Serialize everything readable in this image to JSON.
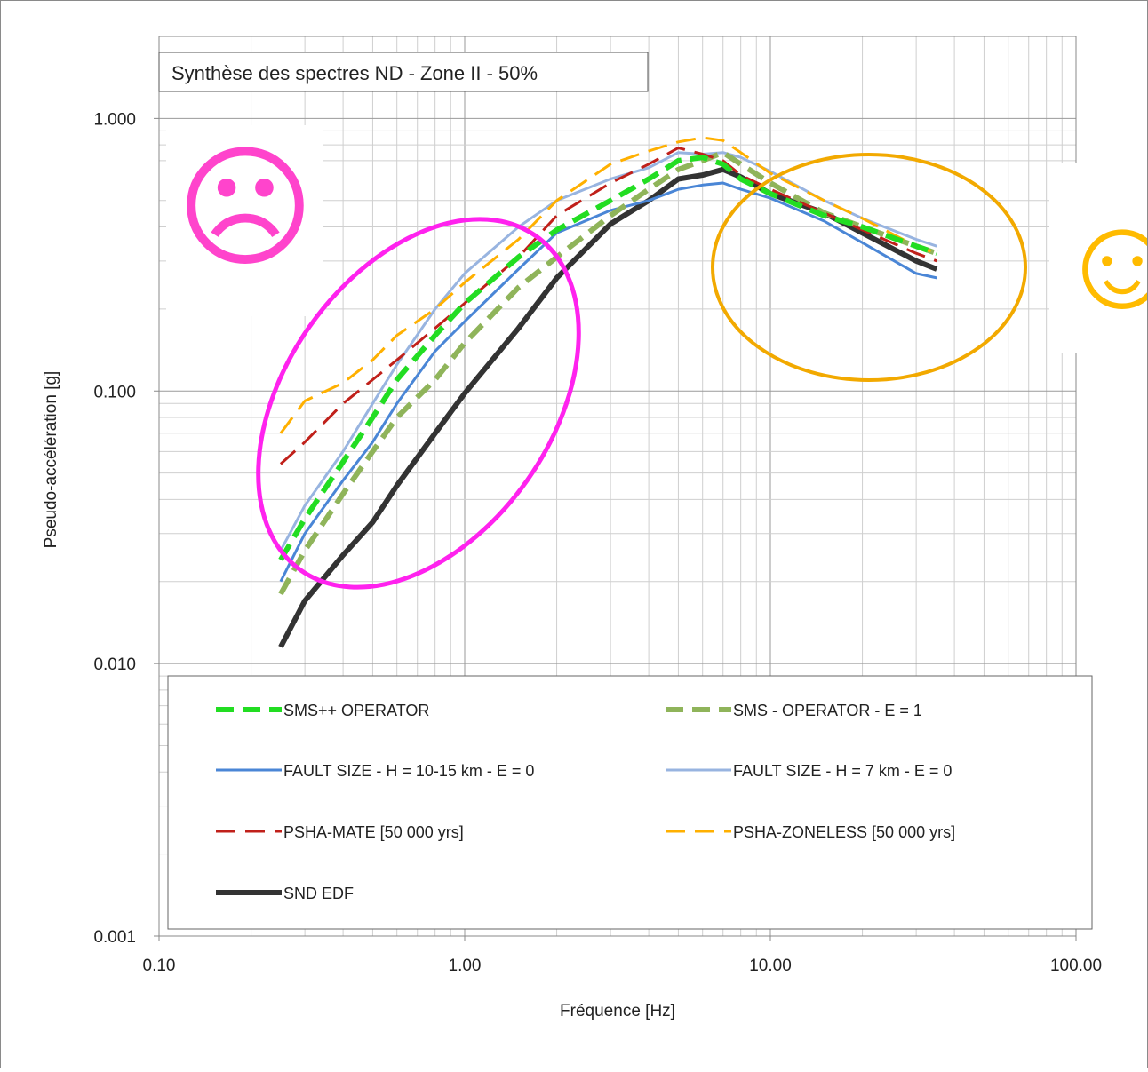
{
  "chart_data": {
    "type": "line",
    "title": "Synthèse des spectres ND - Zone II - 50%",
    "xlabel": "Fréquence [Hz]",
    "ylabel": "Pseudo-accélération [g]",
    "xscale": "log",
    "yscale": "log",
    "xlim": [
      0.1,
      100
    ],
    "ylim": [
      0.001,
      2
    ],
    "x_ticks": [
      "0.10",
      "1.00",
      "10.00",
      "100.00"
    ],
    "y_ticks": [
      "0.001",
      "0.010",
      "0.100",
      "1.000"
    ],
    "grid": true,
    "legend_position": "bottom-inside",
    "series": [
      {
        "name": "SMS++ OPERATOR",
        "color": "#22dd22",
        "style": "bold-dash",
        "points": [
          [
            0.25,
            0.024
          ],
          [
            0.3,
            0.034
          ],
          [
            0.4,
            0.055
          ],
          [
            0.5,
            0.08
          ],
          [
            0.6,
            0.11
          ],
          [
            0.8,
            0.16
          ],
          [
            1.0,
            0.21
          ],
          [
            1.5,
            0.31
          ],
          [
            2.0,
            0.39
          ],
          [
            3.0,
            0.5
          ],
          [
            4.0,
            0.6
          ],
          [
            5.0,
            0.7
          ],
          [
            6.0,
            0.72
          ],
          [
            7.0,
            0.68
          ],
          [
            8.0,
            0.6
          ],
          [
            10.0,
            0.53
          ],
          [
            15.0,
            0.44
          ],
          [
            20.0,
            0.4
          ],
          [
            30.0,
            0.34
          ],
          [
            35.0,
            0.32
          ]
        ]
      },
      {
        "name": "SMS - OPERATOR - E = 1",
        "color": "#8fb45a",
        "style": "bold-dash",
        "points": [
          [
            0.25,
            0.018
          ],
          [
            0.3,
            0.026
          ],
          [
            0.4,
            0.042
          ],
          [
            0.5,
            0.06
          ],
          [
            0.6,
            0.08
          ],
          [
            0.8,
            0.11
          ],
          [
            1.0,
            0.15
          ],
          [
            1.5,
            0.24
          ],
          [
            2.0,
            0.31
          ],
          [
            3.0,
            0.44
          ],
          [
            4.0,
            0.55
          ],
          [
            5.0,
            0.65
          ],
          [
            6.0,
            0.7
          ],
          [
            7.0,
            0.75
          ],
          [
            8.0,
            0.68
          ],
          [
            10.0,
            0.58
          ],
          [
            15.0,
            0.45
          ],
          [
            20.0,
            0.4
          ],
          [
            30.0,
            0.34
          ],
          [
            35.0,
            0.32
          ]
        ]
      },
      {
        "name": "FAULT SIZE - H = 10-15 km - E = 0",
        "color": "#4a86d6",
        "style": "solid",
        "points": [
          [
            0.25,
            0.02
          ],
          [
            0.3,
            0.03
          ],
          [
            0.4,
            0.047
          ],
          [
            0.5,
            0.065
          ],
          [
            0.6,
            0.09
          ],
          [
            0.8,
            0.14
          ],
          [
            1.0,
            0.18
          ],
          [
            1.5,
            0.28
          ],
          [
            2.0,
            0.38
          ],
          [
            3.0,
            0.46
          ],
          [
            4.0,
            0.5
          ],
          [
            5.0,
            0.55
          ],
          [
            6.0,
            0.57
          ],
          [
            7.0,
            0.58
          ],
          [
            8.0,
            0.55
          ],
          [
            10.0,
            0.51
          ],
          [
            15.0,
            0.42
          ],
          [
            20.0,
            0.35
          ],
          [
            30.0,
            0.27
          ],
          [
            35.0,
            0.26
          ]
        ]
      },
      {
        "name": "FAULT SIZE - H = 7 km - E = 0",
        "color": "#98b4e0",
        "style": "solid",
        "points": [
          [
            0.25,
            0.026
          ],
          [
            0.3,
            0.038
          ],
          [
            0.4,
            0.06
          ],
          [
            0.5,
            0.09
          ],
          [
            0.6,
            0.125
          ],
          [
            0.8,
            0.2
          ],
          [
            1.0,
            0.27
          ],
          [
            1.5,
            0.4
          ],
          [
            2.0,
            0.5
          ],
          [
            3.0,
            0.6
          ],
          [
            4.0,
            0.66
          ],
          [
            5.0,
            0.75
          ],
          [
            6.0,
            0.74
          ],
          [
            7.0,
            0.75
          ],
          [
            8.0,
            0.72
          ],
          [
            10.0,
            0.64
          ],
          [
            15.0,
            0.5
          ],
          [
            20.0,
            0.43
          ],
          [
            30.0,
            0.36
          ],
          [
            35.0,
            0.34
          ]
        ]
      },
      {
        "name": "PSHA-MATE [50 000 yrs]",
        "color": "#c0201a",
        "style": "dash",
        "points": [
          [
            0.25,
            0.054
          ],
          [
            0.3,
            0.065
          ],
          [
            0.4,
            0.09
          ],
          [
            0.5,
            0.11
          ],
          [
            0.6,
            0.13
          ],
          [
            0.8,
            0.17
          ],
          [
            1.0,
            0.21
          ],
          [
            1.5,
            0.31
          ],
          [
            2.0,
            0.44
          ],
          [
            3.0,
            0.58
          ],
          [
            4.0,
            0.68
          ],
          [
            5.0,
            0.78
          ],
          [
            6.0,
            0.74
          ],
          [
            7.0,
            0.7
          ],
          [
            8.0,
            0.62
          ],
          [
            10.0,
            0.55
          ],
          [
            15.0,
            0.45
          ],
          [
            20.0,
            0.39
          ],
          [
            30.0,
            0.32
          ],
          [
            35.0,
            0.3
          ]
        ]
      },
      {
        "name": "PSHA-ZONELESS [50 000 yrs]",
        "color": "#ffb000",
        "style": "dash",
        "points": [
          [
            0.25,
            0.07
          ],
          [
            0.3,
            0.092
          ],
          [
            0.4,
            0.107
          ],
          [
            0.5,
            0.13
          ],
          [
            0.6,
            0.16
          ],
          [
            0.8,
            0.2
          ],
          [
            1.0,
            0.25
          ],
          [
            1.5,
            0.36
          ],
          [
            2.0,
            0.5
          ],
          [
            3.0,
            0.68
          ],
          [
            4.0,
            0.76
          ],
          [
            5.0,
            0.82
          ],
          [
            6.0,
            0.85
          ],
          [
            7.0,
            0.83
          ],
          [
            8.0,
            0.75
          ],
          [
            10.0,
            0.63
          ],
          [
            15.0,
            0.5
          ],
          [
            20.0,
            0.43
          ],
          [
            30.0,
            0.34
          ],
          [
            35.0,
            0.32
          ]
        ]
      },
      {
        "name": "SND EDF",
        "color": "#333333",
        "style": "bold",
        "points": [
          [
            0.25,
            0.0115
          ],
          [
            0.3,
            0.017
          ],
          [
            0.4,
            0.025
          ],
          [
            0.5,
            0.033
          ],
          [
            0.6,
            0.045
          ],
          [
            0.8,
            0.07
          ],
          [
            1.0,
            0.098
          ],
          [
            1.5,
            0.17
          ],
          [
            2.0,
            0.26
          ],
          [
            3.0,
            0.41
          ],
          [
            4.0,
            0.5
          ],
          [
            5.0,
            0.6
          ],
          [
            6.0,
            0.62
          ],
          [
            7.0,
            0.65
          ],
          [
            8.0,
            0.61
          ],
          [
            10.0,
            0.53
          ],
          [
            15.0,
            0.45
          ],
          [
            20.0,
            0.38
          ],
          [
            30.0,
            0.3
          ],
          [
            35.0,
            0.28
          ]
        ]
      }
    ],
    "annotations": {
      "sad_face": {
        "glyph": "☹",
        "color": "#ff44cc"
      },
      "happy_face": {
        "glyph": "☺",
        "color": "#ffbb00"
      },
      "left_ellipse_color": "#ff22ee",
      "right_ellipse_color": "#f2a900"
    }
  }
}
